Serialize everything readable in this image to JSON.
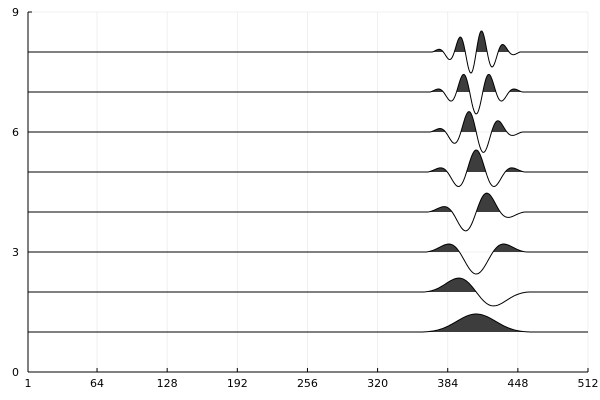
{
  "chart_data": {
    "type": "line",
    "title": "",
    "xlabel": "",
    "ylabel": "",
    "xlim": [
      1,
      512
    ],
    "ylim": [
      0,
      9
    ],
    "grid": true,
    "legend": "none",
    "fill_positive_lobes": true,
    "colors": {
      "line": "#000000",
      "fill": "#3d3d3d",
      "grid": "#ececec",
      "axis": "#000000"
    },
    "x_ticks": [
      {
        "value": 1,
        "label": "1"
      },
      {
        "value": 64,
        "label": "64"
      },
      {
        "value": 128,
        "label": "128"
      },
      {
        "value": 192,
        "label": "192"
      },
      {
        "value": 256,
        "label": "256"
      },
      {
        "value": 320,
        "label": "320"
      },
      {
        "value": 384,
        "label": "384"
      },
      {
        "value": 448,
        "label": "448"
      },
      {
        "value": 512,
        "label": "512"
      }
    ],
    "y_ticks": [
      {
        "value": 0,
        "label": "0"
      },
      {
        "value": 3,
        "label": "3"
      },
      {
        "value": 6,
        "label": "6"
      },
      {
        "value": 9,
        "label": "9"
      }
    ],
    "series": [
      {
        "baseline": 1,
        "amplitude": 0.45,
        "support": [
          360,
          460
        ],
        "half_cycles": 1
      },
      {
        "baseline": 2,
        "amplitude": 0.55,
        "support": [
          362,
          458
        ],
        "half_cycles": 2
      },
      {
        "baseline": 3,
        "amplitude": 0.55,
        "support": [
          364,
          456
        ],
        "half_cycles": 3
      },
      {
        "baseline": 4,
        "amplitude": 0.55,
        "support": [
          366,
          454
        ],
        "half_cycles": 4
      },
      {
        "baseline": 5,
        "amplitude": 0.55,
        "support": [
          366,
          454
        ],
        "half_cycles": 5
      },
      {
        "baseline": 6,
        "amplitude": 0.55,
        "support": [
          368,
          452
        ],
        "half_cycles": 6
      },
      {
        "baseline": 7,
        "amplitude": 0.55,
        "support": [
          368,
          452
        ],
        "half_cycles": 7
      },
      {
        "baseline": 8,
        "amplitude": 0.55,
        "support": [
          370,
          450
        ],
        "half_cycles": 8
      }
    ]
  }
}
